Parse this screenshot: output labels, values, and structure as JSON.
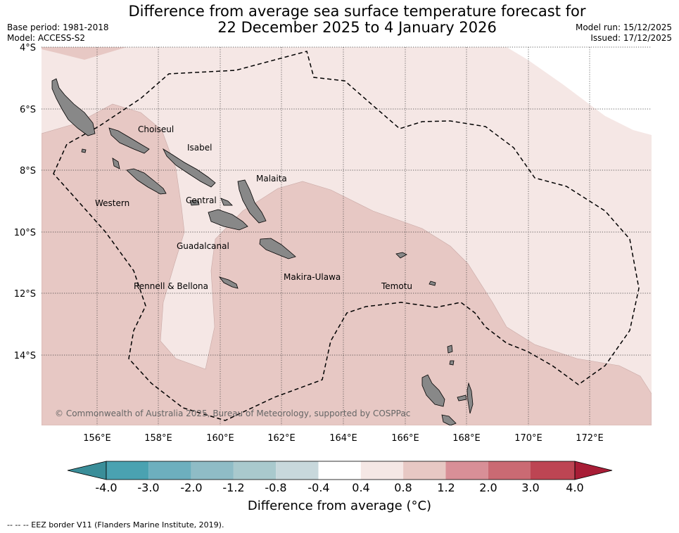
{
  "header": {
    "title_line1": "Difference from average sea surface temperature forecast for",
    "title_line2": "22 December 2025 to 4 January 2026",
    "base_period": "Base period: 1981-2018",
    "model": "Model: ACCESS-S2",
    "model_run": "Model run: 15/12/2025",
    "issued": "Issued: 17/12/2025"
  },
  "map": {
    "lat_labels": [
      "4°S",
      "6°S",
      "8°S",
      "10°S",
      "12°S",
      "14°S"
    ],
    "lon_labels": [
      "156°E",
      "158°E",
      "160°E",
      "162°E",
      "164°E",
      "166°E",
      "168°E",
      "170°E",
      "172°E"
    ],
    "provinces": [
      "Choiseul",
      "Isabel",
      "Malaita",
      "Western",
      "Central",
      "Guadalcanal",
      "Makira-Ulawa",
      "Rennell & Bellona",
      "Temotu"
    ],
    "copyright": "© Commonwealth of Australia 2025, Bureau of Meteorology, supported by COSPPac",
    "colors": {
      "land": "#888888",
      "shade_light": "#f5e7e5",
      "shade_mid": "#e7c8c4",
      "white": "#ffffff"
    }
  },
  "colorbar": {
    "ticks": [
      "-4.0",
      "-3.0",
      "-2.0",
      "-1.2",
      "-0.8",
      "-0.4",
      "0.4",
      "0.8",
      "1.2",
      "2.0",
      "3.0",
      "4.0"
    ],
    "colors": [
      "#3a8e99",
      "#4aa2b1",
      "#6dafbe",
      "#8fbcc6",
      "#a9c9cd",
      "#c8d8dc",
      "#ffffff",
      "#f5e7e5",
      "#e7c8c4",
      "#d88f97",
      "#ca6a73",
      "#bd4553",
      "#a81d36"
    ],
    "title": "Difference from average (°C)"
  },
  "footer": "-- -- -- EEZ border V11 (Flanders Marine Institute, 2019)."
}
